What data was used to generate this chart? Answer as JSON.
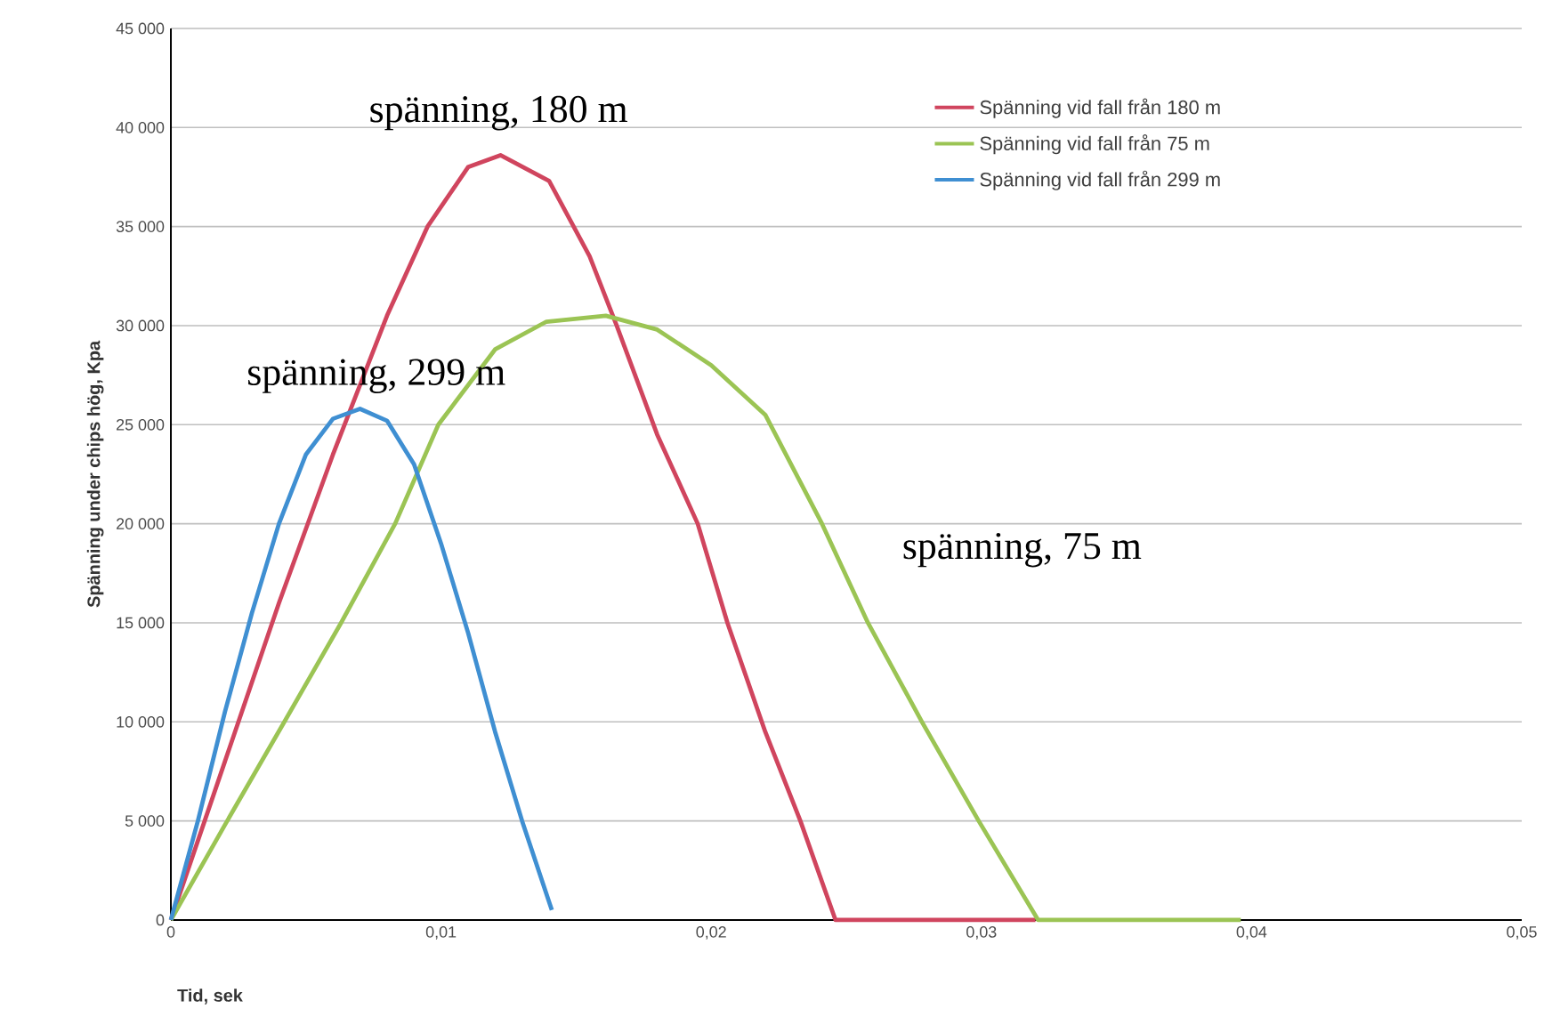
{
  "chart_data": {
    "type": "line",
    "xlabel": "Tid, sek",
    "ylabel": "Spänning under chips hög, Kpa",
    "xlim": [
      0,
      0.05
    ],
    "ylim": [
      0,
      45000
    ],
    "xticks": [
      0,
      {
        "value": 0.01,
        "label": "0,01"
      },
      {
        "value": 0.02,
        "label": "0,02"
      },
      {
        "value": 0.03,
        "label": "0,03"
      },
      {
        "value": 0.04,
        "label": "0,04"
      },
      {
        "value": 0.05,
        "label": "0,05"
      }
    ],
    "yticks": [
      0,
      {
        "value": 5000,
        "label": "5 000"
      },
      {
        "value": 10000,
        "label": "10 000"
      },
      {
        "value": 15000,
        "label": "15 000"
      },
      {
        "value": 20000,
        "label": "20 000"
      },
      {
        "value": 25000,
        "label": "25 000"
      },
      {
        "value": 30000,
        "label": "30 000"
      },
      {
        "value": 35000,
        "label": "35 000"
      },
      {
        "value": 40000,
        "label": "40 000"
      },
      {
        "value": 45000,
        "label": "45 000"
      }
    ],
    "grid": "y",
    "legend": "top right",
    "marker": "none",
    "line_style": "solid",
    "series": [
      {
        "name": "Spänning vid fall från 180 m",
        "color": "#d0455e",
        "x": [
          0,
          0.002,
          0.004,
          0.006,
          0.008,
          0.0095,
          0.011,
          0.0122,
          0.014,
          0.0155,
          0.0165,
          0.018,
          0.0195,
          0.0206,
          0.022,
          0.0233,
          0.0246,
          0.032
        ],
        "values": [
          0,
          8000,
          16000,
          23500,
          30500,
          35000,
          38000,
          38600,
          37300,
          33500,
          30000,
          24500,
          20000,
          15000,
          9500,
          5000,
          0,
          0
        ]
      },
      {
        "name": "Spänning vid fall från 75 m",
        "color": "#9bc454",
        "x": [
          0,
          0.002,
          0.0042,
          0.0063,
          0.0083,
          0.0099,
          0.012,
          0.0139,
          0.0161,
          0.018,
          0.02,
          0.022,
          0.0241,
          0.0258,
          0.0278,
          0.0299,
          0.0321,
          0.0396
        ],
        "values": [
          0,
          4800,
          10000,
          15000,
          20000,
          25000,
          28800,
          30200,
          30500,
          29800,
          28000,
          25500,
          20000,
          15000,
          10000,
          5000,
          0,
          0
        ]
      },
      {
        "name": "Spänning vid fall från 299 m",
        "color": "#3f8fd2",
        "x": [
          0,
          0.001,
          0.002,
          0.003,
          0.004,
          0.005,
          0.006,
          0.007,
          0.008,
          0.009,
          0.01,
          0.011,
          0.012,
          0.013,
          0.0141
        ],
        "values": [
          0,
          5000,
          10500,
          15500,
          20000,
          23500,
          25300,
          25800,
          25200,
          23000,
          19000,
          14500,
          9500,
          5000,
          500
        ]
      }
    ],
    "annotations": [
      "spänning, 180 m",
      "spänning, 299 m",
      "spänning, 75 m"
    ]
  }
}
